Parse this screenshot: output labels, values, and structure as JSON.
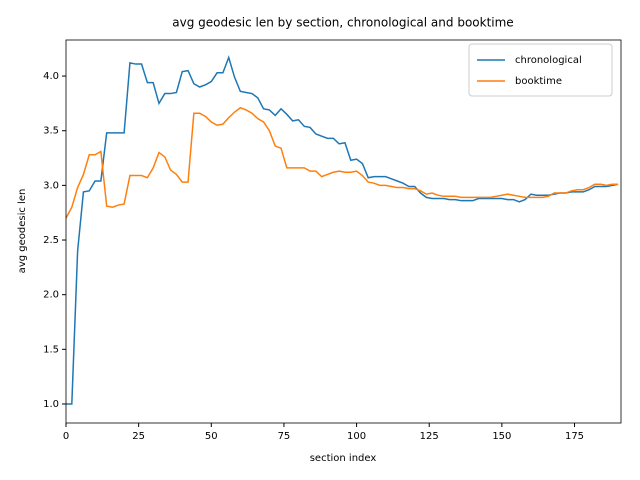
{
  "chart_data": {
    "type": "line",
    "title": "avg geodesic len by section, chronological and booktime",
    "x_label": "section index",
    "y_label": "avg geodesic len",
    "x": [
      0,
      2,
      4,
      6,
      8,
      10,
      12,
      14,
      16,
      18,
      20,
      22,
      24,
      26,
      28,
      30,
      32,
      34,
      36,
      38,
      40,
      42,
      44,
      46,
      48,
      50,
      52,
      54,
      56,
      58,
      60,
      62,
      64,
      66,
      68,
      70,
      72,
      74,
      76,
      78,
      80,
      82,
      84,
      86,
      88,
      90,
      92,
      94,
      96,
      98,
      100,
      102,
      104,
      106,
      108,
      110,
      112,
      114,
      116,
      118,
      120,
      122,
      124,
      126,
      128,
      130,
      132,
      134,
      136,
      138,
      140,
      142,
      144,
      146,
      148,
      150,
      152,
      154,
      156,
      158,
      160,
      162,
      164,
      166,
      168,
      170,
      172,
      174,
      176,
      178,
      180,
      182,
      184,
      186,
      188,
      190
    ],
    "series": [
      {
        "name": "chronological",
        "color": "#1f77b4",
        "values": [
          1.0,
          1.0,
          2.4,
          2.94,
          2.95,
          3.04,
          3.04,
          3.48,
          3.48,
          3.48,
          3.48,
          4.12,
          4.11,
          4.11,
          3.94,
          3.94,
          3.75,
          3.84,
          3.84,
          3.85,
          4.04,
          4.05,
          3.93,
          3.9,
          3.92,
          3.95,
          4.03,
          4.03,
          4.17,
          3.99,
          3.86,
          3.85,
          3.84,
          3.8,
          3.7,
          3.69,
          3.64,
          3.7,
          3.65,
          3.59,
          3.6,
          3.54,
          3.53,
          3.47,
          3.45,
          3.43,
          3.43,
          3.38,
          3.39,
          3.23,
          3.24,
          3.2,
          3.07,
          3.08,
          3.08,
          3.08,
          3.06,
          3.04,
          3.02,
          2.99,
          2.99,
          2.93,
          2.89,
          2.88,
          2.88,
          2.88,
          2.87,
          2.87,
          2.86,
          2.86,
          2.86,
          2.88,
          2.88,
          2.88,
          2.88,
          2.88,
          2.87,
          2.87,
          2.85,
          2.87,
          2.92,
          2.91,
          2.91,
          2.91,
          2.92,
          2.93,
          2.93,
          2.94,
          2.94,
          2.94,
          2.96,
          2.99,
          2.99,
          2.99,
          3.0,
          3.01
        ]
      },
      {
        "name": "booktime",
        "color": "#ff7f0e",
        "values": [
          2.7,
          2.8,
          2.98,
          3.1,
          3.28,
          3.28,
          3.31,
          2.81,
          2.8,
          2.82,
          2.83,
          3.09,
          3.09,
          3.09,
          3.07,
          3.16,
          3.3,
          3.26,
          3.14,
          3.1,
          3.03,
          3.03,
          3.66,
          3.66,
          3.63,
          3.58,
          3.55,
          3.56,
          3.62,
          3.67,
          3.71,
          3.69,
          3.66,
          3.61,
          3.58,
          3.5,
          3.36,
          3.34,
          3.16,
          3.16,
          3.16,
          3.16,
          3.13,
          3.13,
          3.08,
          3.1,
          3.12,
          3.13,
          3.12,
          3.12,
          3.13,
          3.09,
          3.03,
          3.02,
          3.0,
          3.0,
          2.99,
          2.98,
          2.98,
          2.97,
          2.97,
          2.95,
          2.92,
          2.93,
          2.91,
          2.9,
          2.9,
          2.9,
          2.89,
          2.89,
          2.89,
          2.89,
          2.89,
          2.89,
          2.9,
          2.91,
          2.92,
          2.91,
          2.9,
          2.89,
          2.89,
          2.89,
          2.89,
          2.9,
          2.93,
          2.93,
          2.93,
          2.95,
          2.96,
          2.96,
          2.98,
          3.01,
          3.01,
          3.0,
          3.01,
          3.01
        ]
      }
    ],
    "xlim": [
      0,
      191
    ],
    "ylim": [
      0.826,
      4.33
    ],
    "xticks": [
      0,
      25,
      50,
      75,
      100,
      125,
      150,
      175
    ],
    "yticks": [
      {
        "value": 1,
        "label": "1.0"
      },
      {
        "value": 1.5,
        "label": "1.5"
      },
      {
        "value": 2,
        "label": "2.0"
      },
      {
        "value": 2.5,
        "label": "2.5"
      },
      {
        "value": 3,
        "label": "3.0"
      },
      {
        "value": 3.5,
        "label": "3.5"
      },
      {
        "value": 4,
        "label": "4.0"
      }
    ],
    "legend": "upper right",
    "grid": false
  }
}
